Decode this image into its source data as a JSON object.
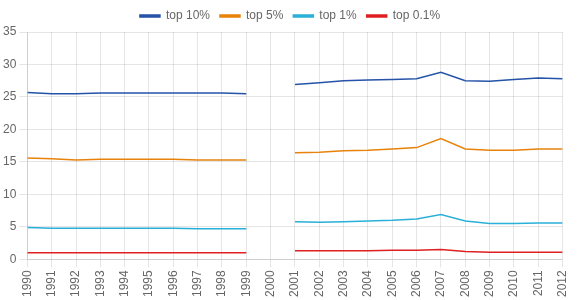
{
  "chart_data": {
    "type": "line",
    "x": [
      1990,
      1991,
      1992,
      1993,
      1994,
      1995,
      1996,
      1997,
      1998,
      1999,
      2000,
      2001,
      2002,
      2003,
      2004,
      2005,
      2006,
      2007,
      2008,
      2009,
      2010,
      2011,
      2012
    ],
    "series": [
      {
        "name": "top 10%",
        "color": "#2453a8",
        "values": [
          25.7,
          25.5,
          25.5,
          25.6,
          25.6,
          25.6,
          25.6,
          25.6,
          25.6,
          25.5,
          null,
          26.9,
          27.2,
          27.5,
          27.6,
          27.7,
          27.8,
          28.8,
          27.5,
          27.4,
          27.7,
          27.9,
          27.8
        ]
      },
      {
        "name": "top 5%",
        "color": "#e8820a",
        "values": [
          15.6,
          15.5,
          15.3,
          15.4,
          15.4,
          15.4,
          15.4,
          15.3,
          15.3,
          15.3,
          null,
          16.4,
          16.5,
          16.7,
          16.8,
          17.0,
          17.2,
          18.6,
          17.0,
          16.8,
          16.8,
          17.0,
          17.0
        ]
      },
      {
        "name": "top 1%",
        "color": "#29b0d8",
        "values": [
          4.9,
          4.8,
          4.8,
          4.8,
          4.8,
          4.8,
          4.8,
          4.7,
          4.7,
          4.7,
          null,
          5.8,
          5.7,
          5.8,
          5.9,
          6.0,
          6.2,
          6.9,
          5.9,
          5.5,
          5.5,
          5.6,
          5.6
        ]
      },
      {
        "name": "top 0.1%",
        "color": "#e02020",
        "values": [
          1.0,
          1.0,
          1.0,
          1.0,
          1.0,
          1.0,
          1.0,
          1.0,
          1.0,
          1.0,
          null,
          1.3,
          1.3,
          1.3,
          1.3,
          1.4,
          1.4,
          1.5,
          1.2,
          1.1,
          1.1,
          1.1,
          1.1
        ]
      }
    ],
    "xlim": [
      1990,
      2012
    ],
    "xticks": [
      1990,
      1991,
      1992,
      1993,
      1994,
      1995,
      1996,
      1997,
      1998,
      1999,
      2000,
      2001,
      2002,
      2003,
      2004,
      2005,
      2006,
      2007,
      2008,
      2009,
      2010,
      2011,
      2012
    ],
    "ylim": [
      0,
      35
    ],
    "yticks": [
      0,
      5,
      10,
      15,
      20,
      25,
      30,
      35
    ],
    "grid": true,
    "legend": "top"
  }
}
